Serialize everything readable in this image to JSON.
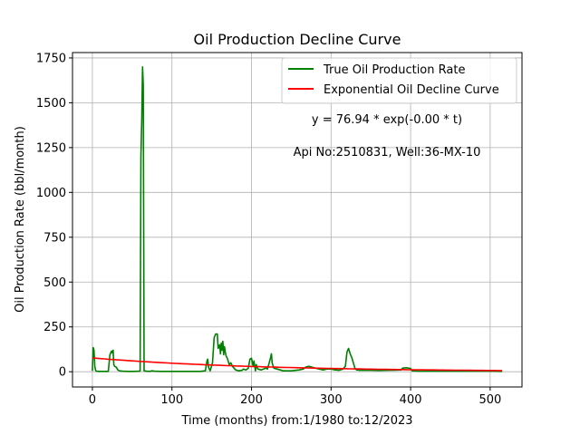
{
  "chart_data": {
    "type": "line",
    "title": "Oil Production Decline Curve",
    "xlabel": "Time (months) from:1/1980 to:12/2023",
    "ylabel": "Oil Production Rate (bbl/month)",
    "xlim": [
      -25,
      540
    ],
    "ylim": [
      -85,
      1780
    ],
    "xticks": [
      0,
      100,
      200,
      300,
      400,
      500
    ],
    "yticks": [
      0,
      250,
      500,
      750,
      1000,
      1250,
      1500,
      1750
    ],
    "grid": true,
    "legend_position": "top-right",
    "annotations": [
      "y = 76.94 * exp(-0.00 * t)",
      "Api No:2510831, Well:36-MX-10"
    ],
    "series": [
      {
        "name": "True Oil Production Rate",
        "color": "#008000",
        "points": [
          [
            0,
            5
          ],
          [
            1,
            135
          ],
          [
            2,
            120
          ],
          [
            3,
            30
          ],
          [
            4,
            8
          ],
          [
            5,
            3
          ],
          [
            8,
            2
          ],
          [
            12,
            2
          ],
          [
            16,
            2
          ],
          [
            20,
            2
          ],
          [
            22,
            95
          ],
          [
            24,
            115
          ],
          [
            25,
            105
          ],
          [
            26,
            120
          ],
          [
            27,
            40
          ],
          [
            28,
            30
          ],
          [
            30,
            25
          ],
          [
            32,
            10
          ],
          [
            34,
            5
          ],
          [
            38,
            3
          ],
          [
            45,
            2
          ],
          [
            52,
            2
          ],
          [
            58,
            3
          ],
          [
            60,
            4
          ],
          [
            61,
            1200
          ],
          [
            62,
            1400
          ],
          [
            63,
            1700
          ],
          [
            64,
            1600
          ],
          [
            65,
            5
          ],
          [
            68,
            3
          ],
          [
            72,
            2
          ],
          [
            75,
            5
          ],
          [
            78,
            3
          ],
          [
            85,
            2
          ],
          [
            100,
            2
          ],
          [
            120,
            2
          ],
          [
            135,
            2
          ],
          [
            142,
            5
          ],
          [
            144,
            60
          ],
          [
            145,
            70
          ],
          [
            146,
            25
          ],
          [
            148,
            5
          ],
          [
            151,
            50
          ],
          [
            153,
            190
          ],
          [
            155,
            210
          ],
          [
            157,
            210
          ],
          [
            158,
            130
          ],
          [
            160,
            150
          ],
          [
            161,
            100
          ],
          [
            162,
            160
          ],
          [
            163,
            120
          ],
          [
            164,
            170
          ],
          [
            165,
            95
          ],
          [
            166,
            140
          ],
          [
            167,
            110
          ],
          [
            168,
            90
          ],
          [
            170,
            70
          ],
          [
            172,
            40
          ],
          [
            174,
            50
          ],
          [
            176,
            30
          ],
          [
            180,
            10
          ],
          [
            184,
            5
          ],
          [
            188,
            8
          ],
          [
            190,
            15
          ],
          [
            193,
            10
          ],
          [
            196,
            20
          ],
          [
            198,
            70
          ],
          [
            200,
            75
          ],
          [
            202,
            30
          ],
          [
            203,
            60
          ],
          [
            205,
            5
          ],
          [
            206,
            40
          ],
          [
            208,
            15
          ],
          [
            212,
            10
          ],
          [
            215,
            15
          ],
          [
            218,
            20
          ],
          [
            220,
            15
          ],
          [
            222,
            45
          ],
          [
            224,
            80
          ],
          [
            225,
            100
          ],
          [
            226,
            50
          ],
          [
            228,
            20
          ],
          [
            232,
            15
          ],
          [
            236,
            10
          ],
          [
            240,
            5
          ],
          [
            250,
            5
          ],
          [
            260,
            10
          ],
          [
            265,
            15
          ],
          [
            268,
            25
          ],
          [
            272,
            30
          ],
          [
            276,
            25
          ],
          [
            280,
            20
          ],
          [
            285,
            15
          ],
          [
            290,
            10
          ],
          [
            295,
            15
          ],
          [
            300,
            15
          ],
          [
            305,
            10
          ],
          [
            310,
            8
          ],
          [
            315,
            15
          ],
          [
            318,
            30
          ],
          [
            320,
            110
          ],
          [
            322,
            130
          ],
          [
            324,
            100
          ],
          [
            326,
            80
          ],
          [
            328,
            50
          ],
          [
            330,
            20
          ],
          [
            332,
            10
          ],
          [
            336,
            8
          ],
          [
            340,
            8
          ],
          [
            350,
            8
          ],
          [
            360,
            7
          ],
          [
            370,
            8
          ],
          [
            380,
            9
          ],
          [
            388,
            10
          ],
          [
            390,
            20
          ],
          [
            395,
            22
          ],
          [
            400,
            18
          ],
          [
            402,
            5
          ],
          [
            410,
            3
          ],
          [
            420,
            3
          ],
          [
            440,
            3
          ],
          [
            460,
            3
          ],
          [
            480,
            3
          ],
          [
            500,
            3
          ],
          [
            515,
            2
          ]
        ]
      },
      {
        "name": "Exponential Oil Decline Curve",
        "color": "#ff0000",
        "function": {
          "a": 76.94,
          "b": 0.0048,
          "x_start": 0,
          "x_end": 515
        }
      }
    ]
  }
}
